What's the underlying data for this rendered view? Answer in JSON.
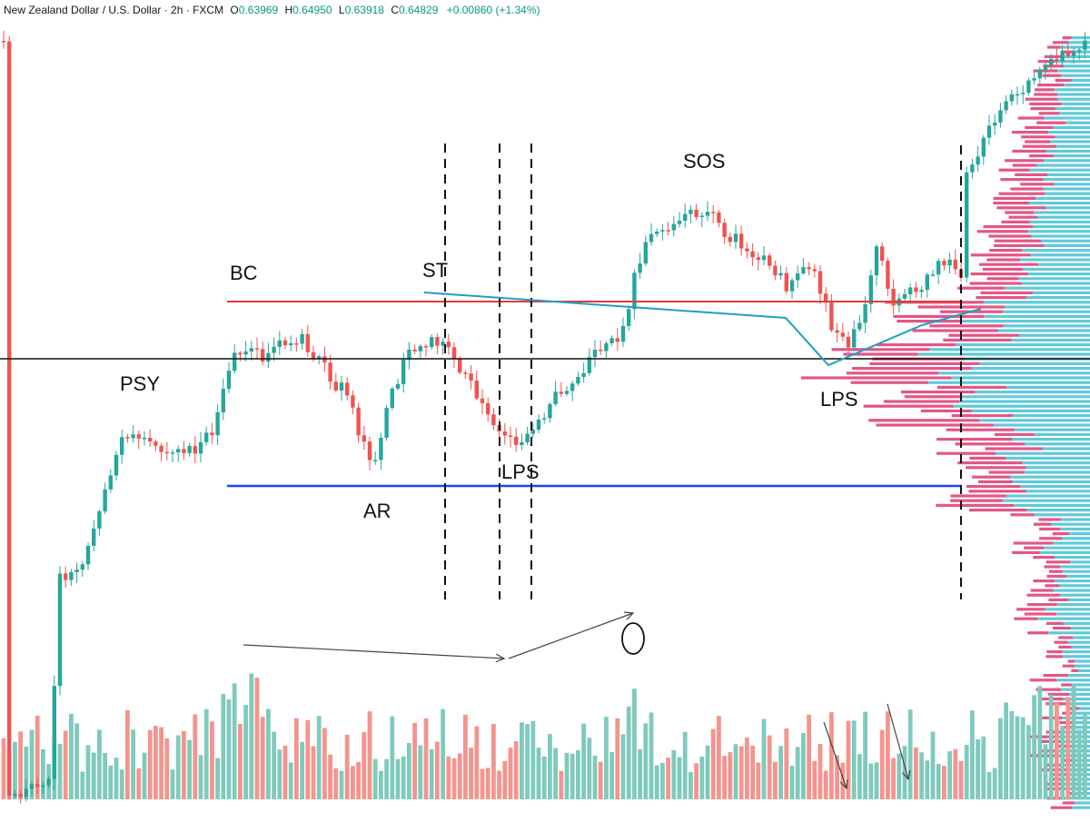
{
  "header": {
    "symbol": "New Zealand Dollar / U.S. Dollar · 2h · FXCM",
    "open_label": "O",
    "open": "0.63969",
    "high_label": "H",
    "high": "0.64950",
    "low_label": "L",
    "low": "0.63918",
    "close_label": "C",
    "close": "0.64829",
    "change": "+0.00860 (+1.34%)"
  },
  "colors": {
    "up": "#26a69a",
    "down": "#ef5350",
    "vol_up": "#7fcabd",
    "vol_down": "#f4948e",
    "vp_up": "#4fc3d7",
    "vp_down": "#e0447a",
    "resistance": "#e53935",
    "support": "#1e40ff",
    "midline": "#111111",
    "trendline": "#1e9fc4",
    "arrow": "#444444"
  },
  "annotations": {
    "psy": "PSY",
    "bc": "BC",
    "ar": "AR",
    "st": "ST",
    "lps1": "LPS",
    "sos": "SOS",
    "lps2": "LPS"
  },
  "chart_data": {
    "type": "candlestick",
    "title": "",
    "y_axis_visible": false,
    "price_path_anchors": [
      [
        0.0,
        0.63
      ],
      [
        0.06,
        0.631
      ],
      [
        0.08,
        0.636
      ],
      [
        0.12,
        0.638
      ],
      [
        0.14,
        0.64
      ],
      [
        0.17,
        0.639
      ],
      [
        0.21,
        0.64
      ],
      [
        0.25,
        0.6425
      ],
      [
        0.29,
        0.641
      ],
      [
        0.33,
        0.6395
      ],
      [
        0.36,
        0.6385
      ],
      [
        0.4,
        0.6423
      ],
      [
        0.44,
        0.641
      ],
      [
        0.48,
        0.6392
      ],
      [
        0.52,
        0.6405
      ],
      [
        0.56,
        0.6418
      ],
      [
        0.58,
        0.6436
      ],
      [
        0.63,
        0.645
      ],
      [
        0.66,
        0.6446
      ],
      [
        0.7,
        0.6432
      ],
      [
        0.75,
        0.6428
      ],
      [
        0.78,
        0.6418
      ],
      [
        0.8,
        0.6432
      ],
      [
        0.84,
        0.6427
      ],
      [
        0.87,
        0.6435
      ],
      [
        0.9,
        0.644
      ],
      [
        0.93,
        0.6465
      ],
      [
        0.97,
        0.648
      ],
      [
        1.0,
        0.6482
      ]
    ],
    "volume_pattern": "mixed green/red bars, higher around BC and selling climax, declining into ST, spike before breakout",
    "volume_profile": "horizontal up/down volume histogram on right side"
  }
}
